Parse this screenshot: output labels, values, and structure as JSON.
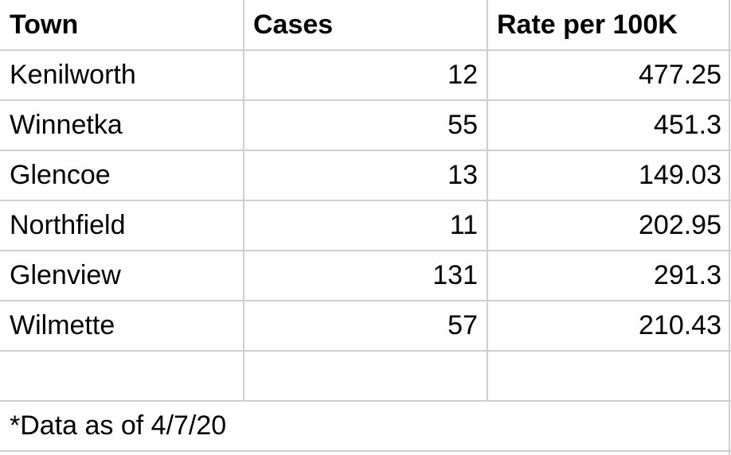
{
  "table": {
    "header": [
      "Town",
      "Cases",
      "Rate per 100K"
    ],
    "rows": [
      [
        "Kenilworth",
        12,
        477.25
      ],
      [
        "Winnetka",
        55,
        451.3
      ],
      [
        "Glencoe",
        13,
        149.03
      ],
      [
        "Northfield",
        11,
        202.95
      ],
      [
        "Glenview",
        131,
        291.3
      ],
      [
        "Wilmette",
        57,
        210.43
      ]
    ],
    "footnote": "*Data as of 4/7/20"
  }
}
